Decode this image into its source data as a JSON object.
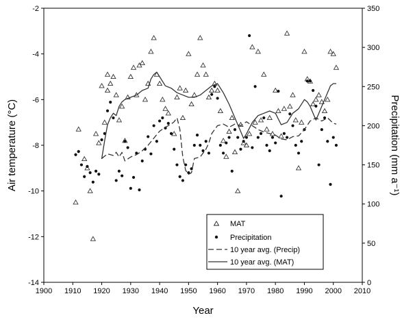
{
  "chart_data": {
    "type": "scatter",
    "xlabel": "Year",
    "ylabel_left": "Air temperature (°C)",
    "ylabel_right": "Precipitation (mm a⁻¹)",
    "xlim": [
      1900,
      2010
    ],
    "ylim_left": [
      -14,
      -2
    ],
    "ylim_right": [
      0,
      350
    ],
    "x_ticks": [
      "1900",
      "1910",
      "1920",
      "1930",
      "1940",
      "1950",
      "1960",
      "1970",
      "1980",
      "1990",
      "2000",
      "2010"
    ],
    "y_left_ticks": [
      "-2",
      "-4",
      "-6",
      "-8",
      "-10",
      "-12",
      "-14"
    ],
    "y_right_ticks": [
      "350",
      "300",
      "250",
      "200",
      "150",
      "100",
      "50",
      "0"
    ],
    "grid": false,
    "legend_position": "bottom-right",
    "series": [
      {
        "name": "MAT",
        "kind": "scatter",
        "marker": "open-triangle",
        "axis": "left",
        "points": [
          [
            1911,
            -10.5
          ],
          [
            1912,
            -7.3
          ],
          [
            1914,
            -8.6
          ],
          [
            1915,
            -9.0
          ],
          [
            1916,
            -10.0
          ],
          [
            1917,
            -12.1
          ],
          [
            1918,
            -7.5
          ],
          [
            1919,
            -7.9
          ],
          [
            1920,
            -5.4
          ],
          [
            1921,
            -7.0
          ],
          [
            1922,
            -4.9
          ],
          [
            1922,
            -5.6
          ],
          [
            1923,
            -5.3
          ],
          [
            1924,
            -5.0
          ],
          [
            1925,
            -5.8
          ],
          [
            1926,
            -6.9
          ],
          [
            1927,
            -6.3
          ],
          [
            1928,
            -7.8
          ],
          [
            1929,
            -5.9
          ],
          [
            1930,
            -5.0
          ],
          [
            1931,
            -4.6
          ],
          [
            1932,
            -5.8
          ],
          [
            1933,
            -4.5
          ],
          [
            1934,
            -4.4
          ],
          [
            1935,
            -6.0
          ],
          [
            1936,
            -5.3
          ],
          [
            1937,
            -3.9
          ],
          [
            1938,
            -3.3
          ],
          [
            1939,
            -4.9
          ],
          [
            1940,
            -5.3
          ],
          [
            1941,
            -6.0
          ],
          [
            1942,
            -6.4
          ],
          [
            1943,
            -6.6
          ],
          [
            1945,
            -7.5
          ],
          [
            1946,
            -5.9
          ],
          [
            1947,
            -5.5
          ],
          [
            1948,
            -6.8
          ],
          [
            1949,
            -5.6
          ],
          [
            1950,
            -4.0
          ],
          [
            1951,
            -6.2
          ],
          [
            1952,
            -5.8
          ],
          [
            1953,
            -4.9
          ],
          [
            1954,
            -3.3
          ],
          [
            1955,
            -4.5
          ],
          [
            1956,
            -4.9
          ],
          [
            1957,
            -5.9
          ],
          [
            1958,
            -5.6
          ],
          [
            1959,
            -5.3
          ],
          [
            1960,
            -5.6
          ],
          [
            1961,
            -6.5
          ],
          [
            1962,
            -7.8
          ],
          [
            1963,
            -8.5
          ],
          [
            1964,
            -7.4
          ],
          [
            1965,
            -6.8
          ],
          [
            1966,
            -8.3
          ],
          [
            1967,
            -10.0
          ],
          [
            1968,
            -7.1
          ],
          [
            1969,
            -7.9
          ],
          [
            1970,
            -8.0
          ],
          [
            1971,
            -7.5
          ],
          [
            1972,
            -3.7
          ],
          [
            1973,
            -7.0
          ],
          [
            1974,
            -3.9
          ],
          [
            1975,
            -6.9
          ],
          [
            1976,
            -4.9
          ],
          [
            1977,
            -7.3
          ],
          [
            1978,
            -6.8
          ],
          [
            1979,
            -7.5
          ],
          [
            1980,
            -5.6
          ],
          [
            1981,
            -6.5
          ],
          [
            1982,
            -7.6
          ],
          [
            1983,
            -6.4
          ],
          [
            1984,
            -3.1
          ],
          [
            1985,
            -6.3
          ],
          [
            1986,
            -5.8
          ],
          [
            1987,
            -6.9
          ],
          [
            1988,
            -9.0
          ],
          [
            1989,
            -7.0
          ],
          [
            1990,
            -3.9
          ],
          [
            1991,
            -5.1
          ],
          [
            1992,
            -5.2
          ],
          [
            1993,
            -6.2
          ],
          [
            1994,
            -6.0
          ],
          [
            1995,
            -5.8
          ],
          [
            1996,
            -6.1
          ],
          [
            1997,
            -6.5
          ],
          [
            1998,
            -6.0
          ],
          [
            1999,
            -3.9
          ],
          [
            2000,
            -4.0
          ],
          [
            2001,
            -4.6
          ]
        ]
      },
      {
        "name": "Precipitation",
        "kind": "scatter",
        "marker": "filled-dot",
        "axis": "right",
        "points": [
          [
            1911,
            163
          ],
          [
            1912,
            167
          ],
          [
            1913,
            150
          ],
          [
            1914,
            135
          ],
          [
            1915,
            148
          ],
          [
            1916,
            140
          ],
          [
            1917,
            128
          ],
          [
            1918,
            142
          ],
          [
            1919,
            138
          ],
          [
            1920,
            182
          ],
          [
            1921,
            190
          ],
          [
            1922,
            219
          ],
          [
            1923,
            230
          ],
          [
            1924,
            210
          ],
          [
            1925,
            130
          ],
          [
            1926,
            142
          ],
          [
            1927,
            136
          ],
          [
            1928,
            180
          ],
          [
            1929,
            172
          ],
          [
            1930,
            120
          ],
          [
            1931,
            134
          ],
          [
            1932,
            165
          ],
          [
            1933,
            118
          ],
          [
            1934,
            155
          ],
          [
            1935,
            170
          ],
          [
            1936,
            186
          ],
          [
            1937,
            164
          ],
          [
            1938,
            200
          ],
          [
            1939,
            180
          ],
          [
            1940,
            206
          ],
          [
            1941,
            210
          ],
          [
            1942,
            197
          ],
          [
            1943,
            203
          ],
          [
            1944,
            190
          ],
          [
            1945,
            170
          ],
          [
            1946,
            150
          ],
          [
            1947,
            135
          ],
          [
            1948,
            130
          ],
          [
            1949,
            150
          ],
          [
            1950,
            140
          ],
          [
            1951,
            145
          ],
          [
            1952,
            175
          ],
          [
            1953,
            188
          ],
          [
            1954,
            175
          ],
          [
            1955,
            168
          ],
          [
            1956,
            180
          ],
          [
            1957,
            165
          ],
          [
            1958,
            240
          ],
          [
            1959,
            250
          ],
          [
            1960,
            235
          ],
          [
            1961,
            175
          ],
          [
            1962,
            165
          ],
          [
            1963,
            178
          ],
          [
            1964,
            185
          ],
          [
            1965,
            142
          ],
          [
            1966,
            195
          ],
          [
            1967,
            185
          ],
          [
            1968,
            170
          ],
          [
            1969,
            180
          ],
          [
            1970,
            185
          ],
          [
            1971,
            315
          ],
          [
            1972,
            172
          ],
          [
            1973,
            250
          ],
          [
            1974,
            185
          ],
          [
            1975,
            190
          ],
          [
            1976,
            210
          ],
          [
            1977,
            175
          ],
          [
            1978,
            168
          ],
          [
            1979,
            185
          ],
          [
            1980,
            178
          ],
          [
            1981,
            244
          ],
          [
            1982,
            110
          ],
          [
            1983,
            190
          ],
          [
            1984,
            185
          ],
          [
            1985,
            215
          ],
          [
            1986,
            200
          ],
          [
            1987,
            175
          ],
          [
            1988,
            165
          ],
          [
            1989,
            180
          ],
          [
            1990,
            195
          ],
          [
            1991,
            257
          ],
          [
            1992,
            257
          ],
          [
            1993,
            245
          ],
          [
            1994,
            225
          ],
          [
            1995,
            150
          ],
          [
            1996,
            195
          ],
          [
            1997,
            210
          ],
          [
            1998,
            180
          ],
          [
            1999,
            125
          ],
          [
            2000,
            185
          ],
          [
            2001,
            175
          ]
        ]
      },
      {
        "name": "10 year avg. (Precip)",
        "kind": "line",
        "style": "dashed",
        "axis": "right",
        "points": [
          [
            1920,
            158
          ],
          [
            1922,
            164
          ],
          [
            1924,
            162
          ],
          [
            1925,
            166
          ],
          [
            1926,
            160
          ],
          [
            1927,
            166
          ],
          [
            1928,
            155
          ],
          [
            1930,
            160
          ],
          [
            1932,
            163
          ],
          [
            1934,
            168
          ],
          [
            1936,
            175
          ],
          [
            1938,
            184
          ],
          [
            1940,
            193
          ],
          [
            1942,
            198
          ],
          [
            1944,
            202
          ],
          [
            1945,
            205
          ],
          [
            1946,
            210
          ],
          [
            1947,
            195
          ],
          [
            1948,
            160
          ],
          [
            1949,
            143
          ],
          [
            1950,
            138
          ],
          [
            1951,
            140
          ],
          [
            1952,
            158
          ],
          [
            1954,
            160
          ],
          [
            1956,
            170
          ],
          [
            1957,
            178
          ],
          [
            1958,
            190
          ],
          [
            1960,
            200
          ],
          [
            1962,
            202
          ],
          [
            1964,
            198
          ],
          [
            1966,
            202
          ],
          [
            1968,
            200
          ],
          [
            1970,
            205
          ],
          [
            1972,
            200
          ],
          [
            1974,
            195
          ],
          [
            1976,
            192
          ],
          [
            1978,
            190
          ],
          [
            1980,
            188
          ],
          [
            1982,
            183
          ],
          [
            1984,
            182
          ],
          [
            1986,
            186
          ],
          [
            1988,
            187
          ],
          [
            1990,
            195
          ],
          [
            1992,
            206
          ],
          [
            1994,
            210
          ],
          [
            1996,
            206
          ],
          [
            1998,
            210
          ],
          [
            2000,
            203
          ],
          [
            2001,
            202
          ]
        ]
      },
      {
        "name": "10 year avg. (MAT)",
        "kind": "line",
        "style": "solid",
        "axis": "left",
        "points": [
          [
            1920,
            -8.6
          ],
          [
            1921,
            -7.8
          ],
          [
            1922,
            -7.1
          ],
          [
            1923,
            -6.8
          ],
          [
            1924,
            -6.6
          ],
          [
            1925,
            -6.7
          ],
          [
            1926,
            -6.3
          ],
          [
            1927,
            -6.1
          ],
          [
            1928,
            -6.0
          ],
          [
            1930,
            -5.9
          ],
          [
            1932,
            -5.8
          ],
          [
            1934,
            -5.6
          ],
          [
            1936,
            -5.5
          ],
          [
            1937,
            -5.1
          ],
          [
            1938,
            -4.9
          ],
          [
            1939,
            -4.8
          ],
          [
            1940,
            -5.0
          ],
          [
            1942,
            -5.4
          ],
          [
            1944,
            -5.5
          ],
          [
            1946,
            -5.7
          ],
          [
            1948,
            -5.8
          ],
          [
            1950,
            -5.9
          ],
          [
            1952,
            -5.9
          ],
          [
            1954,
            -5.8
          ],
          [
            1956,
            -5.6
          ],
          [
            1958,
            -5.4
          ],
          [
            1960,
            -5.3
          ],
          [
            1962,
            -5.7
          ],
          [
            1964,
            -6.2
          ],
          [
            1966,
            -6.8
          ],
          [
            1968,
            -7.4
          ],
          [
            1969,
            -7.7
          ],
          [
            1970,
            -7.5
          ],
          [
            1972,
            -7.0
          ],
          [
            1974,
            -6.7
          ],
          [
            1976,
            -6.6
          ],
          [
            1978,
            -6.5
          ],
          [
            1980,
            -6.6
          ],
          [
            1982,
            -7.1
          ],
          [
            1984,
            -7.0
          ],
          [
            1986,
            -6.6
          ],
          [
            1988,
            -6.4
          ],
          [
            1990,
            -6.0
          ],
          [
            1991,
            -6.1
          ],
          [
            1992,
            -6.3
          ],
          [
            1993,
            -6.6
          ],
          [
            1994,
            -6.9
          ],
          [
            1996,
            -6.3
          ],
          [
            1998,
            -5.7
          ],
          [
            1999,
            -5.4
          ],
          [
            2000,
            -5.3
          ],
          [
            2001,
            -5.3
          ]
        ]
      }
    ]
  }
}
